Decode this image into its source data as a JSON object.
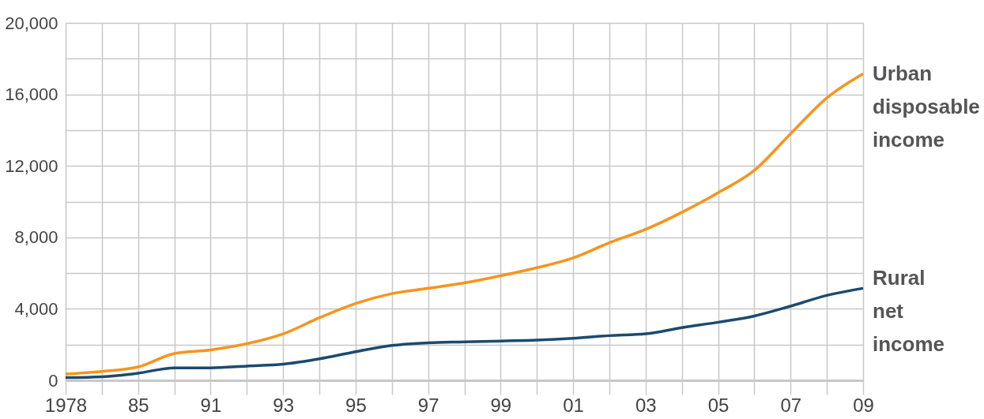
{
  "chart_data": {
    "type": "line",
    "categories": [
      "1978",
      null,
      "85",
      null,
      "91",
      null,
      "93",
      null,
      "95",
      null,
      "97",
      null,
      "99",
      null,
      "01",
      null,
      "03",
      null,
      "05",
      null,
      "07",
      null,
      "09"
    ],
    "series": [
      {
        "name": "Urban disposable income",
        "color": "#f7941d",
        "values": [
          350,
          500,
          750,
          1500,
          1700,
          2050,
          2600,
          3500,
          4300,
          4850,
          5150,
          5450,
          5850,
          6300,
          6850,
          7700,
          8450,
          9400,
          10500,
          11750,
          13800,
          15800,
          17150
        ]
      },
      {
        "name": "Rural net income",
        "color": "#1c4a6e",
        "values": [
          150,
          200,
          400,
          700,
          700,
          800,
          900,
          1200,
          1600,
          1950,
          2100,
          2150,
          2200,
          2250,
          2350,
          2500,
          2600,
          2950,
          3250,
          3600,
          4150,
          4750,
          5150
        ]
      }
    ],
    "ylim": [
      0,
      20000
    ],
    "yticks": [
      {
        "value": 0,
        "label": "0"
      },
      {
        "value": 2000,
        "label": null
      },
      {
        "value": 4000,
        "label": "4,000"
      },
      {
        "value": 6000,
        "label": null
      },
      {
        "value": 8000,
        "label": "8,000"
      },
      {
        "value": 10000,
        "label": null
      },
      {
        "value": 12000,
        "label": "12,000"
      },
      {
        "value": 14000,
        "label": null
      },
      {
        "value": 16000,
        "label": "16,000"
      },
      {
        "value": 18000,
        "label": null
      },
      {
        "value": 20000,
        "label": "20,000"
      }
    ],
    "grid": true,
    "line_style": "solid",
    "marker": "none"
  }
}
